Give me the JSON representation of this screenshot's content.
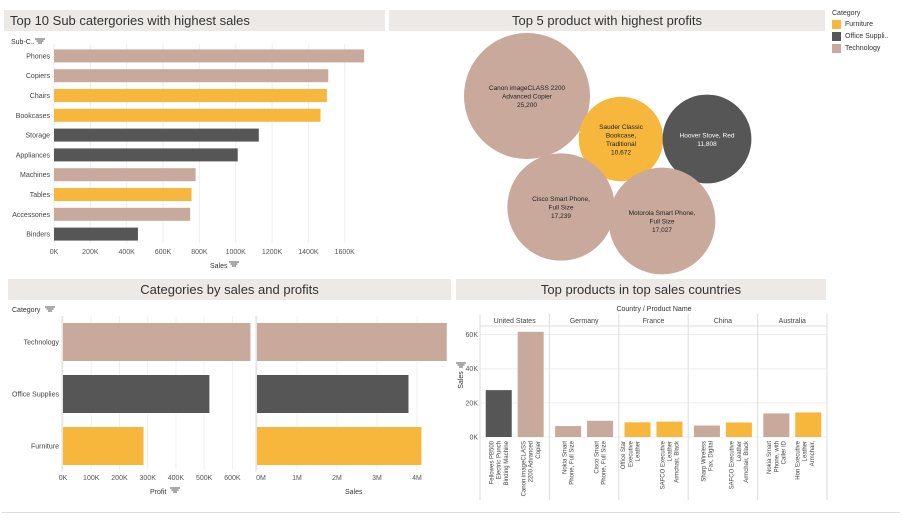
{
  "colors": {
    "Furniture": "#f6b73c",
    "Office Supplies": "#565656",
    "Technology": "#c9a99b"
  },
  "legend": {
    "title": "Category",
    "items": [
      "Furniture",
      "Office Suppli..",
      "Technology"
    ],
    "keys": [
      "Furniture",
      "Office Supplies",
      "Technology"
    ]
  },
  "chart_data": [
    {
      "id": "subcat",
      "type": "bar",
      "title": "Top 10 Sub catergories with highest sales",
      "ylabel": "Sub-C..",
      "xlabel": "Sales",
      "categories": [
        "Phones",
        "Copiers",
        "Chairs",
        "Bookcases",
        "Storage",
        "Appliances",
        "Machines",
        "Tables",
        "Accessories",
        "Binders"
      ],
      "values": [
        1706824,
        1509436,
        1501682,
        1466572,
        1127086,
        1011064,
        779061,
        757042,
        749237,
        461912
      ],
      "category_of": [
        "Technology",
        "Technology",
        "Furniture",
        "Furniture",
        "Office Supplies",
        "Office Supplies",
        "Technology",
        "Furniture",
        "Technology",
        "Office Supplies"
      ],
      "xlim": [
        0,
        1750000
      ],
      "xticks": [
        0,
        200000,
        400000,
        600000,
        800000,
        1000000,
        1200000,
        1400000,
        1600000
      ],
      "xtick_labels": [
        "0K",
        "200K",
        "400K",
        "600K",
        "800K",
        "1000K",
        "1200K",
        "1400K",
        "1600K"
      ]
    },
    {
      "id": "bubbles",
      "type": "scatter",
      "title": "Top 5 product with highest profits",
      "items": [
        {
          "name": "Canon imageCLASS 2200 Advanced Copier",
          "value": "25,200",
          "num": 25200,
          "category": "Technology"
        },
        {
          "name": "Sauder Classic Bookcase, Traditional",
          "value": "10,672",
          "num": 10672,
          "category": "Furniture"
        },
        {
          "name": "Hoover Stove, Red",
          "value": "11,808",
          "num": 11808,
          "category": "Office Supplies"
        },
        {
          "name": "Cisco Smart Phone, Full Size",
          "value": "17,239",
          "num": 17239,
          "category": "Technology"
        },
        {
          "name": "Motorola Smart Phone, Full Size",
          "value": "17,027",
          "num": 17027,
          "category": "Technology"
        }
      ]
    },
    {
      "id": "catprofit",
      "type": "bar",
      "title": "Categories by sales and profits",
      "ylabel": "Category",
      "categories": [
        "Technology",
        "Office Supplies",
        "Furniture"
      ],
      "profit": {
        "xlabel": "Profit",
        "values": [
          663779,
          518474,
          285205
        ],
        "xlim": [
          0,
          680000
        ],
        "xticks": [
          0,
          100000,
          200000,
          300000,
          400000,
          500000,
          600000
        ],
        "xtick_labels": [
          "0K",
          "100K",
          "200K",
          "300K",
          "400K",
          "500K",
          "600K"
        ]
      },
      "sales": {
        "xlabel": "Sales",
        "values": [
          4744557,
          3787070,
          4110874
        ],
        "xlim": [
          0,
          4800000
        ],
        "xticks": [
          0,
          1000000,
          2000000,
          3000000,
          4000000
        ],
        "xtick_labels": [
          "0M",
          "1M",
          "2M",
          "3M",
          "4M"
        ]
      }
    },
    {
      "id": "countries",
      "type": "bar",
      "title": "Top products in top sales countries",
      "header": "Country / Product Name",
      "ylabel": "Sales",
      "ylim": [
        0,
        65000
      ],
      "yticks": [
        0,
        20000,
        40000,
        60000
      ],
      "ytick_labels": [
        "0K",
        "20K",
        "40K",
        "60K"
      ],
      "groups": [
        {
          "country": "United States",
          "bars": [
            {
              "label": "Fellowes PB500 Electric Punch Binding Machine",
              "value": 27453,
              "category": "Office Supplies"
            },
            {
              "label": "Canon imageCLASS 2200 Advanced Copier",
              "value": 61600,
              "category": "Technology"
            }
          ]
        },
        {
          "country": "Germany",
          "bars": [
            {
              "label": "Nokia Smart Phone, Full Size",
              "value": 6400,
              "category": "Technology"
            },
            {
              "label": "Cisco Smart Phone, Full Size",
              "value": 9500,
              "category": "Technology"
            }
          ]
        },
        {
          "country": "France",
          "bars": [
            {
              "label": "Office Star Executive Leather Armchair, Adjusta..",
              "value": 8600,
              "category": "Furniture"
            },
            {
              "label": "SAFCO Executive Leather Armchair, Black",
              "value": 9000,
              "category": "Furniture"
            }
          ]
        },
        {
          "country": "China",
          "bars": [
            {
              "label": "Sharp Wireless Fax, Digital",
              "value": 6700,
              "category": "Technology"
            },
            {
              "label": "SAFCO Executive Leather Armchair, Black",
              "value": 8500,
              "category": "Furniture"
            }
          ]
        },
        {
          "country": "Australia",
          "bars": [
            {
              "label": "Nokia Smart Phone, with Caller ID",
              "value": 13800,
              "category": "Technology"
            },
            {
              "label": "Hon Executive Leather Armchair, Adjustable",
              "value": 14400,
              "category": "Furniture"
            }
          ]
        }
      ]
    }
  ]
}
